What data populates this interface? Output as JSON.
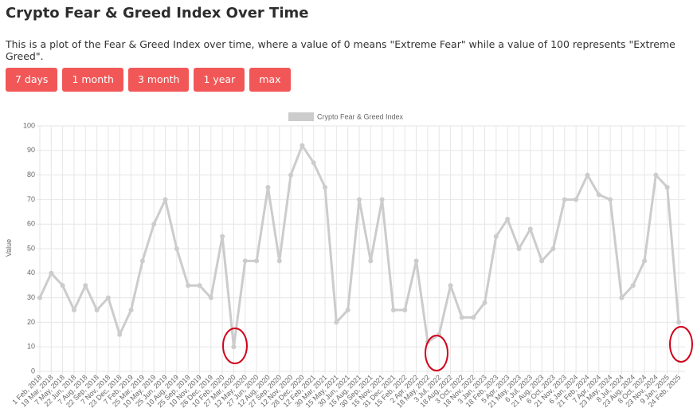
{
  "header": {
    "title": "Crypto Fear & Greed Index Over Time",
    "description": "This is a plot of the Fear & Greed Index over time, where a value of 0 means \"Extreme Fear\" while a value of 100 represents \"Extreme Greed\"."
  },
  "buttons": [
    "7 days",
    "1 month",
    "3 month",
    "1 year",
    "max"
  ],
  "chart_data": {
    "type": "line",
    "y_label": "Value",
    "ylim": [
      0,
      100
    ],
    "yticks": [
      0,
      10,
      20,
      30,
      40,
      50,
      60,
      70,
      80,
      90,
      100
    ],
    "grid": true,
    "categories": [
      "1 Feb, 2018",
      "19 Mar, 2018",
      "7 May, 2018",
      "22 Jun, 2018",
      "7 Aug, 2018",
      "22 Sep, 2018",
      "7 Nov, 2018",
      "23 Dec, 2018",
      "7 Feb, 2019",
      "25 Mar, 2019",
      "10 May, 2019",
      "25 Jun, 2019",
      "10 Aug, 2019",
      "25 Sep, 2019",
      "10 Nov, 2019",
      "26 Dec, 2019",
      "10 Feb, 2020",
      "27 Mar, 2020",
      "12 May, 2020",
      "27 Jun, 2020",
      "12 Aug, 2020",
      "27 Sep, 2020",
      "12 Nov, 2020",
      "28 Dec, 2020",
      "12 Feb, 2021",
      "30 Mar, 2021",
      "15 May, 2021",
      "30 Jun, 2021",
      "15 Aug, 2021",
      "30 Sep, 2021",
      "15 Nov, 2021",
      "31 Dec, 2021",
      "15 Feb, 2022",
      "2 Apr, 2022",
      "18 May, 2022",
      "3 Jul, 2022",
      "18 Aug, 2022",
      "3 Oct, 2022",
      "18 Nov, 2022",
      "3 Jan, 2023",
      "18 Feb, 2023",
      "5 Apr, 2023",
      "21 May, 2023",
      "6 Jul, 2023",
      "21 Aug, 2023",
      "6 Oct, 2023",
      "21 Nov, 2023",
      "6 Jan, 2024",
      "21 Feb, 2024",
      "7 Apr, 2024",
      "23 May, 2024",
      "8 Jul, 2024",
      "23 Aug, 2024",
      "8 Oct, 2024",
      "23 Nov, 2024",
      "9 Jan, 2025",
      "24 Feb, 2025"
    ],
    "series": [
      {
        "name": "Crypto Fear & Greed Index",
        "color": "#cccccc",
        "values": [
          30,
          40,
          35,
          25,
          35,
          25,
          30,
          15,
          25,
          45,
          60,
          70,
          50,
          35,
          35,
          30,
          55,
          10,
          45,
          45,
          75,
          45,
          80,
          92,
          85,
          75,
          20,
          25,
          70,
          45,
          70,
          25,
          25,
          45,
          12,
          15,
          35,
          22,
          22,
          28,
          55,
          62,
          50,
          58,
          45,
          50,
          70,
          70,
          80,
          72,
          70,
          30,
          35,
          45,
          80,
          75,
          20
        ]
      }
    ]
  }
}
